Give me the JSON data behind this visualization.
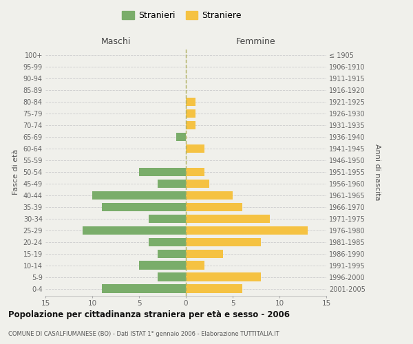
{
  "age_groups": [
    "0-4",
    "5-9",
    "10-14",
    "15-19",
    "20-24",
    "25-29",
    "30-34",
    "35-39",
    "40-44",
    "45-49",
    "50-54",
    "55-59",
    "60-64",
    "65-69",
    "70-74",
    "75-79",
    "80-84",
    "85-89",
    "90-94",
    "95-99",
    "100+"
  ],
  "birth_years": [
    "2001-2005",
    "1996-2000",
    "1991-1995",
    "1986-1990",
    "1981-1985",
    "1976-1980",
    "1971-1975",
    "1966-1970",
    "1961-1965",
    "1956-1960",
    "1951-1955",
    "1946-1950",
    "1941-1945",
    "1936-1940",
    "1931-1935",
    "1926-1930",
    "1921-1925",
    "1916-1920",
    "1911-1915",
    "1906-1910",
    "≤ 1905"
  ],
  "maschi": [
    9,
    3,
    5,
    3,
    4,
    11,
    4,
    9,
    10,
    3,
    5,
    0,
    0,
    1,
    0,
    0,
    0,
    0,
    0,
    0,
    0
  ],
  "femmine": [
    6,
    8,
    2,
    4,
    8,
    13,
    9,
    6,
    5,
    2.5,
    2,
    0,
    2,
    0,
    1,
    1,
    1,
    0,
    0,
    0,
    0
  ],
  "maschi_color": "#7aad6a",
  "femmine_color": "#f5c242",
  "background_color": "#f0f0eb",
  "grid_color": "#cccccc",
  "center_line_color": "#b0b060",
  "title": "Popolazione per cittadinanza straniera per età e sesso - 2006",
  "subtitle": "COMUNE DI CASALFIUMANESE (BO) - Dati ISTAT 1° gennaio 2006 - Elaborazione TUTTITALIA.IT",
  "xlabel_left": "Maschi",
  "xlabel_right": "Femmine",
  "ylabel_left": "Fasce di età",
  "ylabel_right": "Anni di nascita",
  "legend_maschi": "Stranieri",
  "legend_femmine": "Straniere",
  "xlim": 15,
  "bar_height": 0.75
}
